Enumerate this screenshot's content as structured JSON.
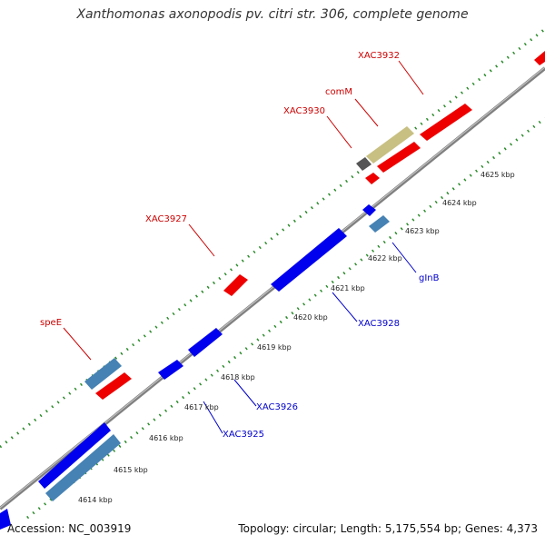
{
  "title": "Xanthomonas axonopodis pv. citri str. 306, complete genome",
  "footer": {
    "accession": "Accession: NC_003919",
    "topology": "Topology: circular; Length: 5,175,554 bp; Genes: 4,373"
  },
  "colors": {
    "forward_gene": "#ff0000",
    "reverse_gene": "#0000ff",
    "forward_label": "#cc0000",
    "reverse_label": "#0000cc",
    "steel_gene": "#4682b4",
    "khaki_gene": "#c8c082",
    "grey_gene": "#555555",
    "backbone": "#909090",
    "ruler_dots": "#2a8a2a"
  },
  "kbp_ticks": [
    "4614 kbp",
    "4615 kbp",
    "4616 kbp",
    "4617 kbp",
    "4618 kbp",
    "4619 kbp",
    "4620 kbp",
    "4621 kbp",
    "4622 kbp",
    "4623 kbp",
    "4624 kbp",
    "4625 kbp"
  ],
  "gene_labels": {
    "forward": [
      "XAC3932",
      "comM",
      "XAC3930",
      "XAC3927",
      "speE"
    ],
    "reverse": [
      "gInB",
      "XAC3928",
      "XAC3926",
      "XAC3925"
    ]
  }
}
